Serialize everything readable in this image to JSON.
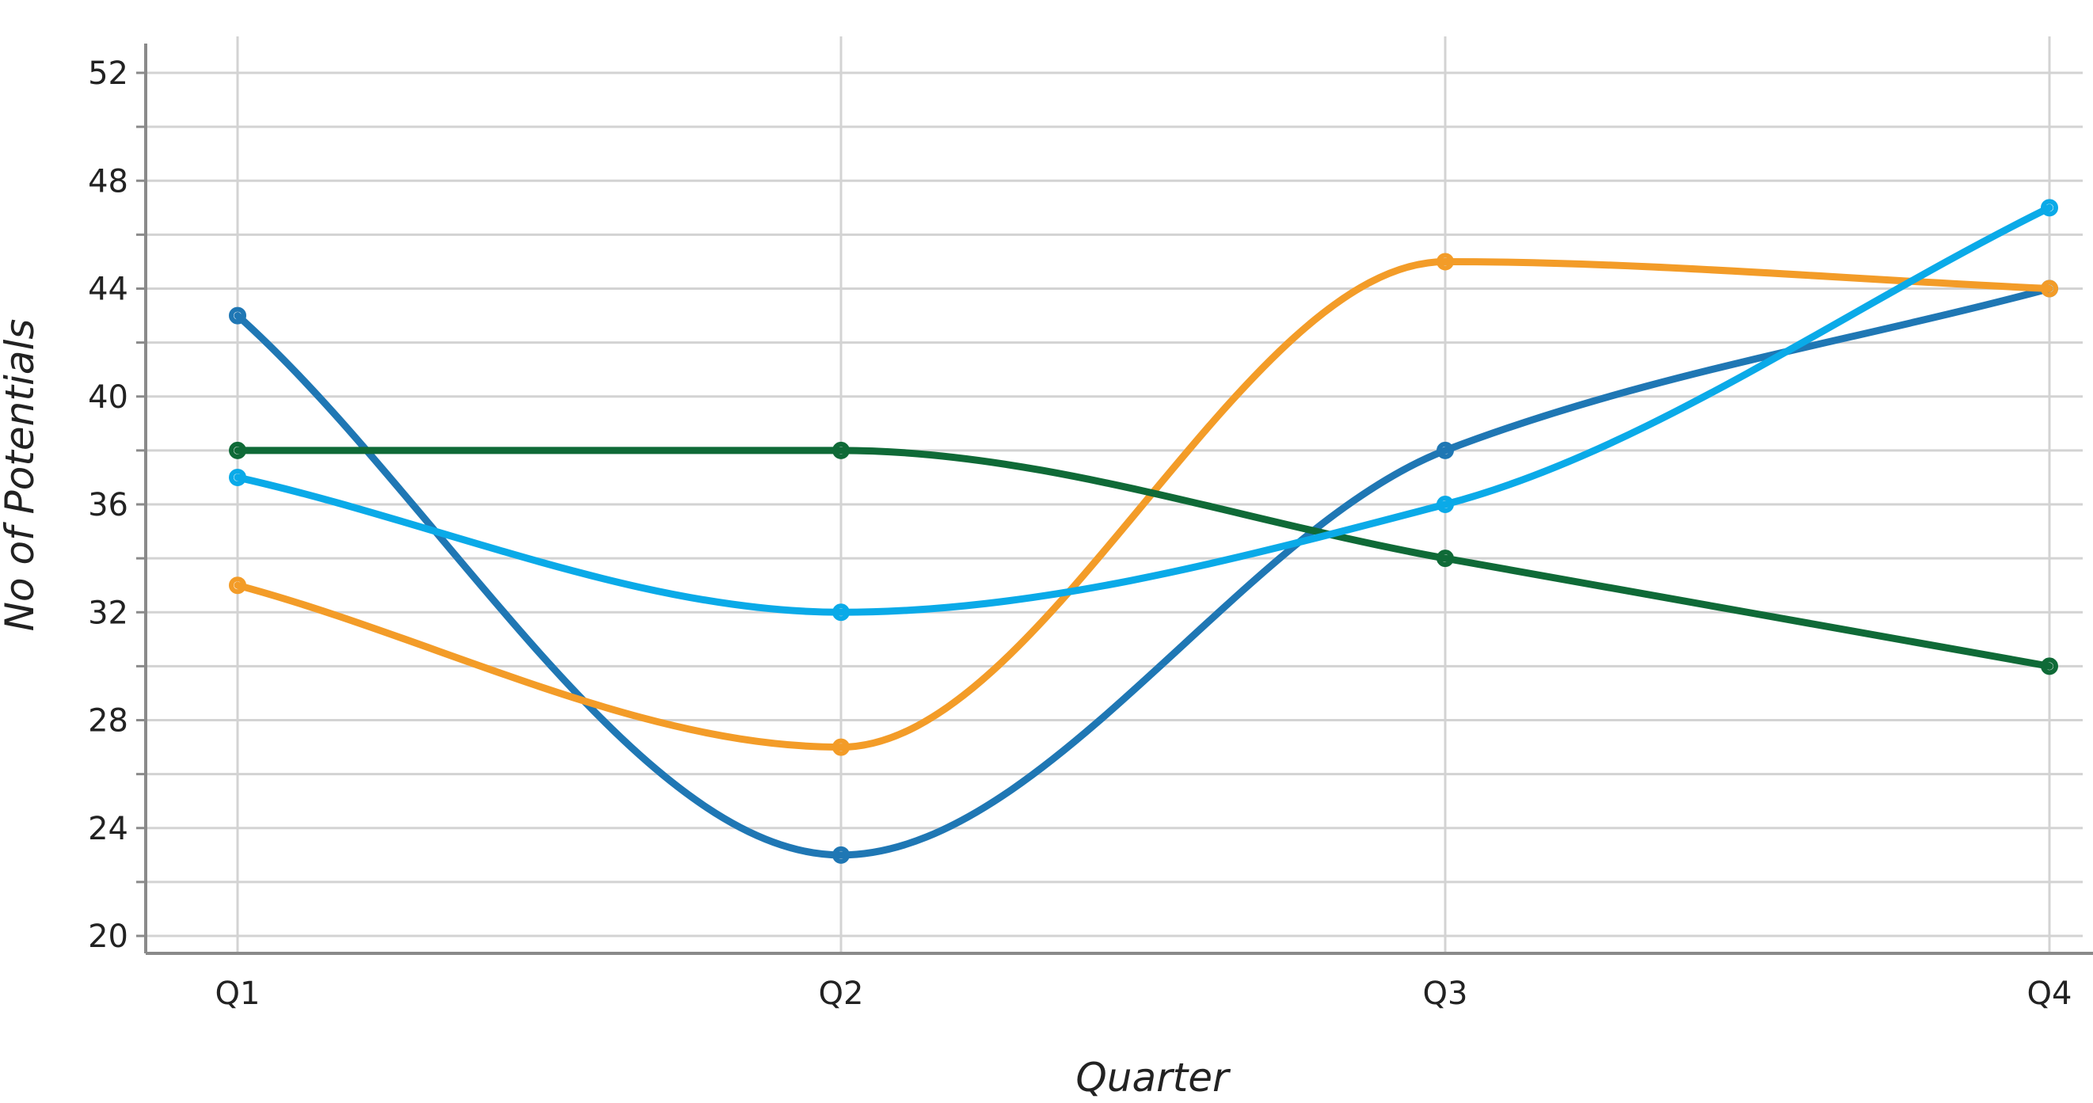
{
  "chart_data": {
    "type": "line",
    "title": "",
    "xlabel": "Quarter",
    "ylabel": "No of Potentials",
    "categories": [
      "Q1",
      "Q2",
      "Q3",
      "Q4"
    ],
    "ylim": [
      20,
      52
    ],
    "y_ticks": [
      20,
      24,
      28,
      32,
      36,
      40,
      44,
      48,
      52
    ],
    "grid": true,
    "legend": "none",
    "smooth": true,
    "series": [
      {
        "color": "#1f77b4",
        "values": [
          43,
          23,
          38,
          44
        ]
      },
      {
        "color": "#f39c28",
        "values": [
          33,
          27,
          45,
          44
        ]
      },
      {
        "color": "#0f6a37",
        "values": [
          38,
          38,
          34,
          30
        ]
      },
      {
        "color": "#0aaae8",
        "values": [
          37,
          32,
          36,
          47
        ]
      }
    ]
  }
}
